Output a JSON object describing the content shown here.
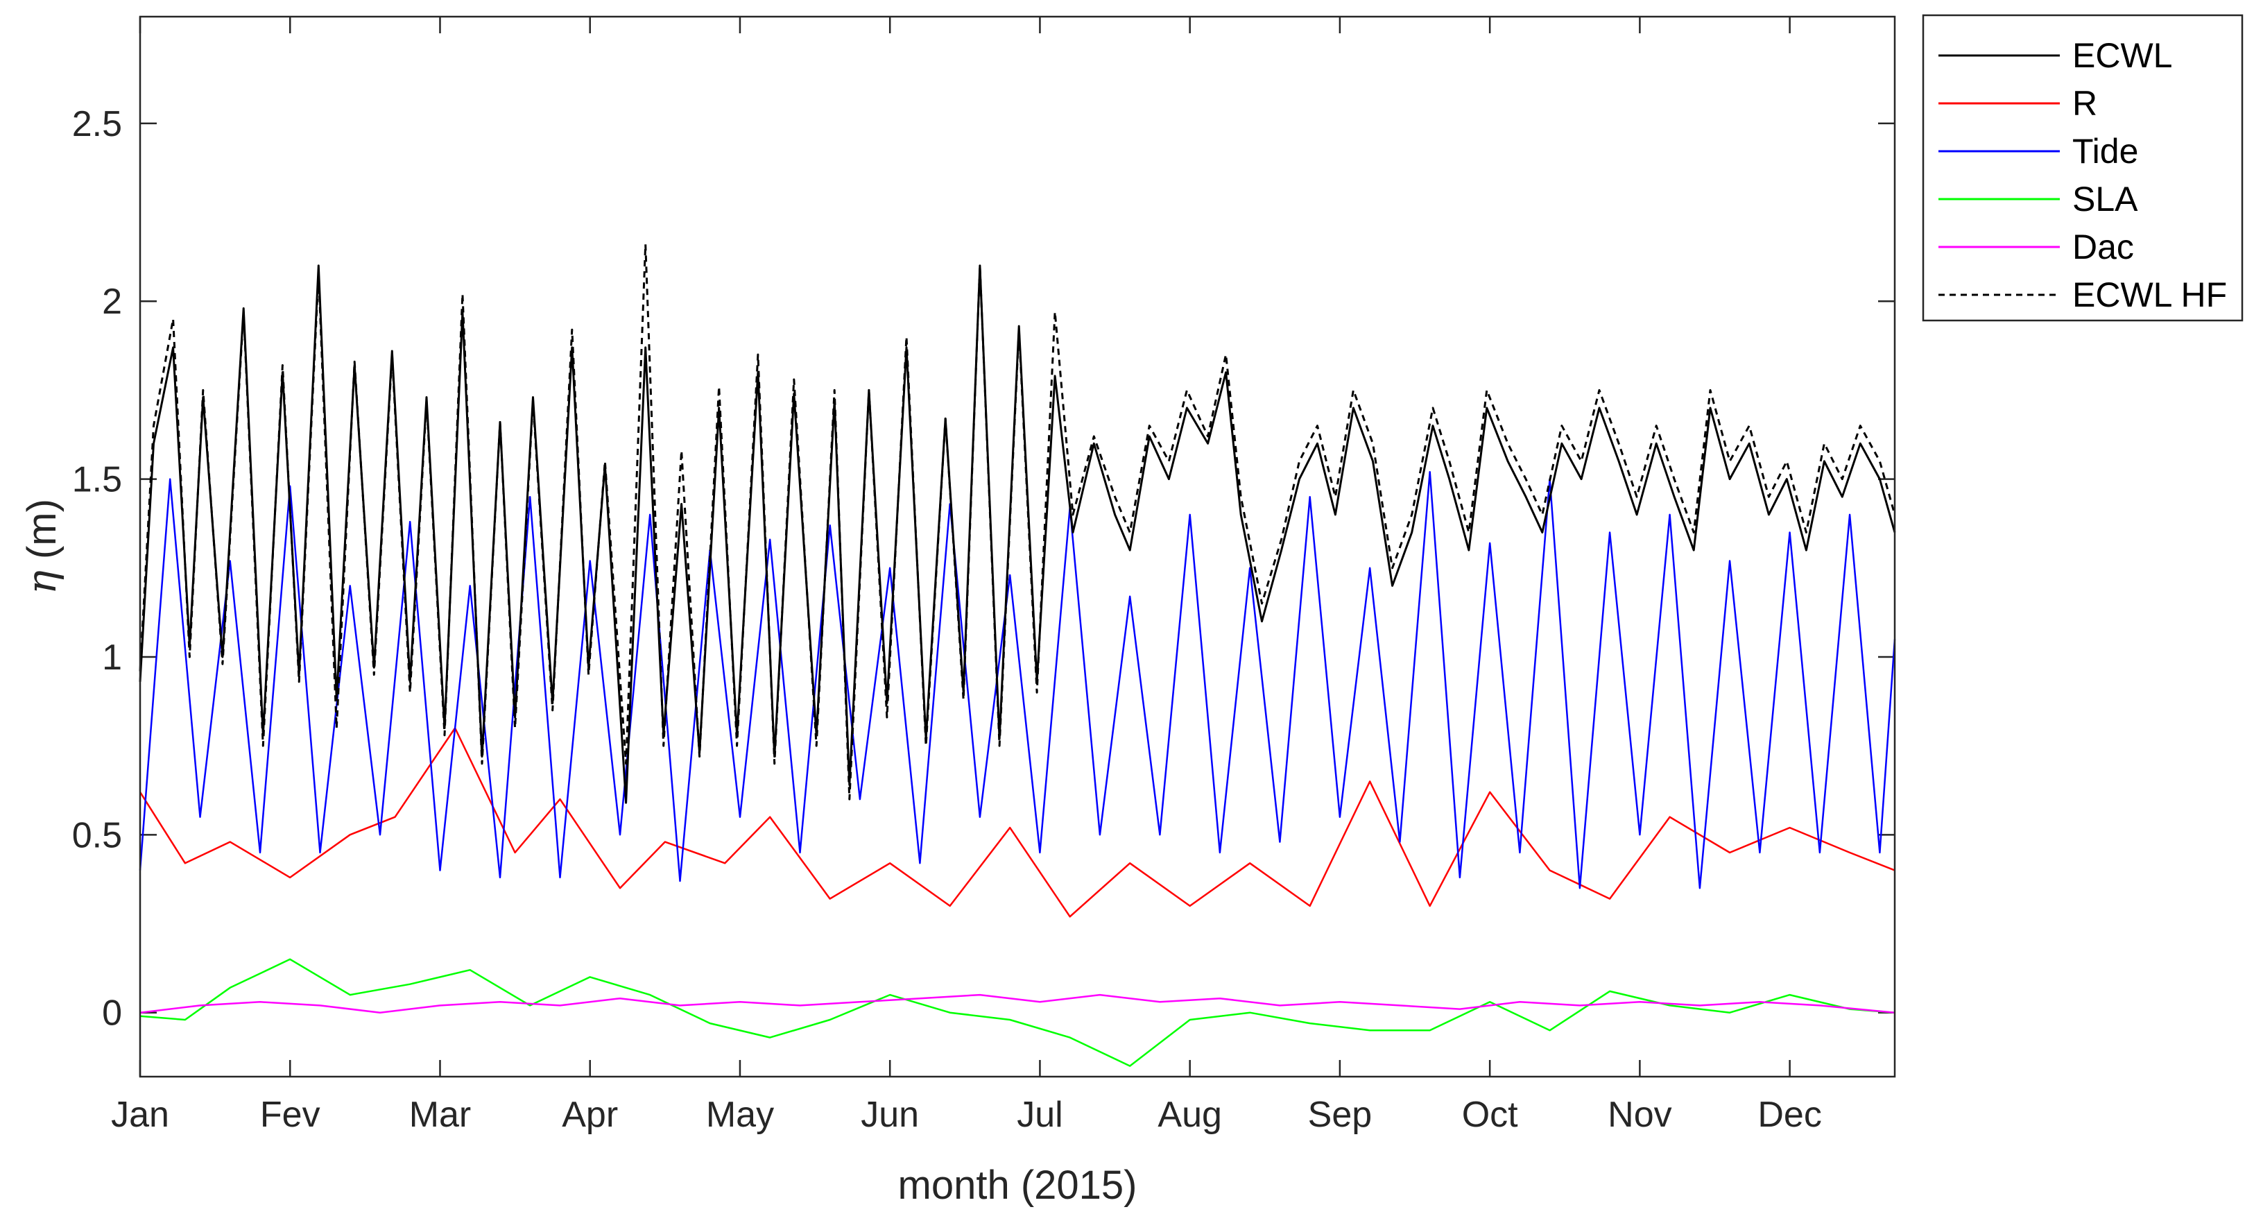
{
  "chart_data": {
    "type": "line",
    "title": "",
    "xlabel": "month (2015)",
    "ylabel_symbol": "η",
    "ylabel_unit": "(m)",
    "xlim": [
      0,
      11.7
    ],
    "ylim": [
      -0.18,
      2.8
    ],
    "x_ticks": [
      {
        "value": 0,
        "label": "Jan"
      },
      {
        "value": 1,
        "label": "Fev"
      },
      {
        "value": 2,
        "label": "Mar"
      },
      {
        "value": 3,
        "label": "Apr"
      },
      {
        "value": 4,
        "label": "May"
      },
      {
        "value": 5,
        "label": "Jun"
      },
      {
        "value": 6,
        "label": "Jul"
      },
      {
        "value": 7,
        "label": "Aug"
      },
      {
        "value": 8,
        "label": "Sep"
      },
      {
        "value": 9,
        "label": "Oct"
      },
      {
        "value": 10,
        "label": "Nov"
      },
      {
        "value": 11,
        "label": "Dec"
      }
    ],
    "y_ticks": [
      {
        "value": 0,
        "label": "0"
      },
      {
        "value": 0.5,
        "label": "0.5"
      },
      {
        "value": 1,
        "label": "1"
      },
      {
        "value": 1.5,
        "label": "1.5"
      },
      {
        "value": 2,
        "label": "2"
      },
      {
        "value": 2.5,
        "label": "2.5"
      }
    ],
    "legend_position": "outside-top-right",
    "series": [
      {
        "name": "ECWL",
        "color": "#000000",
        "dash": "solid",
        "x": [
          0.0,
          0.09,
          0.22,
          0.33,
          0.42,
          0.55,
          0.69,
          0.82,
          0.95,
          1.06,
          1.19,
          1.31,
          1.43,
          1.56,
          1.68,
          1.8,
          1.91,
          2.03,
          2.15,
          2.28,
          2.4,
          2.5,
          2.62,
          2.75,
          2.88,
          2.99,
          3.1,
          3.24,
          3.37,
          3.49,
          3.61,
          3.73,
          3.86,
          3.98,
          4.12,
          4.23,
          4.36,
          4.51,
          4.63,
          4.73,
          4.86,
          4.98,
          5.11,
          5.24,
          5.37,
          5.49,
          5.6,
          5.73,
          5.86,
          5.98,
          6.1,
          6.22,
          6.36,
          6.5,
          6.6,
          6.73,
          6.86,
          6.98,
          7.12,
          7.24,
          7.34,
          7.48,
          7.61,
          7.73,
          7.85,
          7.97,
          8.09,
          8.22,
          8.35,
          8.48,
          8.62,
          8.73,
          8.86,
          8.98,
          9.12,
          9.24,
          9.35,
          9.48,
          9.61,
          9.73,
          9.86,
          9.98,
          10.11,
          10.23,
          10.36,
          10.47,
          10.6,
          10.73,
          10.86,
          10.98,
          11.11,
          11.23,
          11.35,
          11.47,
          11.6,
          11.7
        ],
        "values": [
          0.93,
          1.6,
          1.87,
          1.03,
          1.73,
          1.0,
          1.98,
          0.78,
          1.8,
          0.95,
          2.1,
          0.88,
          1.82,
          0.97,
          1.86,
          0.93,
          1.73,
          0.8,
          1.97,
          0.72,
          1.66,
          0.83,
          1.73,
          0.87,
          1.87,
          0.97,
          1.54,
          0.59,
          1.87,
          0.78,
          1.43,
          0.73,
          1.7,
          0.78,
          1.8,
          0.72,
          1.74,
          0.78,
          1.72,
          0.64,
          1.75,
          0.87,
          1.87,
          0.77,
          1.67,
          0.9,
          2.1,
          0.77,
          1.93,
          0.93,
          1.79,
          1.35,
          1.6,
          1.4,
          1.3,
          1.62,
          1.5,
          1.7,
          1.6,
          1.8,
          1.4,
          1.1,
          1.3,
          1.5,
          1.6,
          1.4,
          1.7,
          1.55,
          1.2,
          1.35,
          1.65,
          1.5,
          1.3,
          1.7,
          1.55,
          1.45,
          1.35,
          1.6,
          1.5,
          1.7,
          1.55,
          1.4,
          1.6,
          1.45,
          1.3,
          1.7,
          1.5,
          1.6,
          1.4,
          1.5,
          1.3,
          1.55,
          1.45,
          1.6,
          1.5,
          1.35
        ]
      },
      {
        "name": "R",
        "color": "#ff0000",
        "dash": "solid",
        "x": [
          0.0,
          0.3,
          0.6,
          1.0,
          1.4,
          1.7,
          2.1,
          2.5,
          2.8,
          3.2,
          3.5,
          3.9,
          4.2,
          4.6,
          5.0,
          5.4,
          5.8,
          6.2,
          6.6,
          7.0,
          7.4,
          7.8,
          8.2,
          8.6,
          9.0,
          9.4,
          9.8,
          10.2,
          10.6,
          11.0,
          11.4,
          11.7
        ],
        "values": [
          0.62,
          0.42,
          0.48,
          0.38,
          0.5,
          0.55,
          0.8,
          0.45,
          0.6,
          0.35,
          0.48,
          0.42,
          0.55,
          0.32,
          0.42,
          0.3,
          0.52,
          0.27,
          0.42,
          0.3,
          0.42,
          0.3,
          0.65,
          0.3,
          0.62,
          0.4,
          0.32,
          0.55,
          0.45,
          0.52,
          0.45,
          0.4
        ]
      },
      {
        "name": "Tide",
        "color": "#0000ff",
        "dash": "solid",
        "x": [
          0.0,
          0.2,
          0.4,
          0.6,
          0.8,
          1.0,
          1.2,
          1.4,
          1.6,
          1.8,
          2.0,
          2.2,
          2.4,
          2.6,
          2.8,
          3.0,
          3.2,
          3.4,
          3.6,
          3.8,
          4.0,
          4.2,
          4.4,
          4.6,
          4.8,
          5.0,
          5.2,
          5.4,
          5.6,
          5.8,
          6.0,
          6.2,
          6.4,
          6.6,
          6.8,
          7.0,
          7.2,
          7.4,
          7.6,
          7.8,
          8.0,
          8.2,
          8.4,
          8.6,
          8.8,
          9.0,
          9.2,
          9.4,
          9.6,
          9.8,
          10.0,
          10.2,
          10.4,
          10.6,
          10.8,
          11.0,
          11.2,
          11.4,
          11.6,
          11.7
        ],
        "values": [
          0.4,
          1.5,
          0.55,
          1.27,
          0.45,
          1.48,
          0.45,
          1.2,
          0.5,
          1.38,
          0.4,
          1.2,
          0.38,
          1.45,
          0.38,
          1.27,
          0.5,
          1.4,
          0.37,
          1.3,
          0.55,
          1.33,
          0.45,
          1.37,
          0.6,
          1.25,
          0.42,
          1.43,
          0.55,
          1.23,
          0.45,
          1.42,
          0.5,
          1.17,
          0.5,
          1.4,
          0.45,
          1.25,
          0.48,
          1.45,
          0.55,
          1.25,
          0.48,
          1.52,
          0.38,
          1.32,
          0.45,
          1.5,
          0.35,
          1.35,
          0.5,
          1.4,
          0.35,
          1.27,
          0.45,
          1.35,
          0.45,
          1.4,
          0.45,
          1.05
        ]
      },
      {
        "name": "SLA",
        "color": "#00ff00",
        "dash": "solid",
        "x": [
          0.0,
          0.3,
          0.6,
          1.0,
          1.4,
          1.8,
          2.2,
          2.6,
          3.0,
          3.4,
          3.8,
          4.2,
          4.6,
          5.0,
          5.4,
          5.8,
          6.2,
          6.6,
          7.0,
          7.4,
          7.8,
          8.2,
          8.6,
          9.0,
          9.4,
          9.8,
          10.2,
          10.6,
          11.0,
          11.4,
          11.7
        ],
        "values": [
          -0.01,
          -0.02,
          0.07,
          0.15,
          0.05,
          0.08,
          0.12,
          0.02,
          0.1,
          0.05,
          -0.03,
          -0.07,
          -0.02,
          0.05,
          0.0,
          -0.02,
          -0.07,
          -0.15,
          -0.02,
          0.0,
          -0.03,
          -0.05,
          -0.05,
          0.03,
          -0.05,
          0.06,
          0.02,
          0.0,
          0.05,
          0.01,
          0.0
        ]
      },
      {
        "name": "Dac",
        "color": "#ff00ff",
        "dash": "solid",
        "x": [
          0.0,
          0.4,
          0.8,
          1.2,
          1.6,
          2.0,
          2.4,
          2.8,
          3.2,
          3.6,
          4.0,
          4.4,
          4.8,
          5.2,
          5.6,
          6.0,
          6.4,
          6.8,
          7.2,
          7.6,
          8.0,
          8.4,
          8.8,
          9.2,
          9.6,
          10.0,
          10.4,
          10.8,
          11.2,
          11.7
        ],
        "values": [
          0.0,
          0.02,
          0.03,
          0.02,
          0.0,
          0.02,
          0.03,
          0.02,
          0.04,
          0.02,
          0.03,
          0.02,
          0.03,
          0.04,
          0.05,
          0.03,
          0.05,
          0.03,
          0.04,
          0.02,
          0.03,
          0.02,
          0.01,
          0.03,
          0.02,
          0.03,
          0.02,
          0.03,
          0.02,
          0.0
        ]
      },
      {
        "name": "ECWL HF",
        "color": "#000000",
        "dash": "dashed",
        "x": [
          0.0,
          0.09,
          0.22,
          0.33,
          0.42,
          0.55,
          0.69,
          0.82,
          0.95,
          1.06,
          1.19,
          1.31,
          1.43,
          1.56,
          1.68,
          1.8,
          1.91,
          2.03,
          2.15,
          2.28,
          2.4,
          2.5,
          2.62,
          2.75,
          2.88,
          2.99,
          3.1,
          3.24,
          3.37,
          3.49,
          3.61,
          3.73,
          3.86,
          3.98,
          4.12,
          4.23,
          4.36,
          4.51,
          4.63,
          4.73,
          4.86,
          4.98,
          5.11,
          5.24,
          5.37,
          5.49,
          5.6,
          5.73,
          5.86,
          5.98,
          6.1,
          6.22,
          6.36,
          6.5,
          6.6,
          6.73,
          6.86,
          6.98,
          7.12,
          7.24,
          7.34,
          7.48,
          7.61,
          7.73,
          7.85,
          7.97,
          8.09,
          8.22,
          8.35,
          8.48,
          8.62,
          8.73,
          8.86,
          8.98,
          9.12,
          9.24,
          9.35,
          9.48,
          9.61,
          9.73,
          9.86,
          9.98,
          10.11,
          10.23,
          10.36,
          10.47,
          10.6,
          10.73,
          10.86,
          10.98,
          11.11,
          11.23,
          11.35,
          11.47,
          11.6,
          11.7
        ],
        "values": [
          0.96,
          1.65,
          1.95,
          1.0,
          1.75,
          0.98,
          1.97,
          0.75,
          1.82,
          0.93,
          2.08,
          0.8,
          1.83,
          0.95,
          1.85,
          0.9,
          1.72,
          0.78,
          2.02,
          0.7,
          1.66,
          0.8,
          1.72,
          0.85,
          1.92,
          0.95,
          1.55,
          0.7,
          2.16,
          0.75,
          1.58,
          0.72,
          1.76,
          0.75,
          1.85,
          0.7,
          1.78,
          0.75,
          1.75,
          0.6,
          1.75,
          0.83,
          1.9,
          0.75,
          1.67,
          0.88,
          2.1,
          0.75,
          1.92,
          0.9,
          1.97,
          1.4,
          1.62,
          1.45,
          1.35,
          1.65,
          1.55,
          1.75,
          1.62,
          1.85,
          1.45,
          1.15,
          1.33,
          1.55,
          1.65,
          1.45,
          1.75,
          1.6,
          1.25,
          1.4,
          1.7,
          1.55,
          1.35,
          1.75,
          1.6,
          1.5,
          1.4,
          1.65,
          1.55,
          1.75,
          1.6,
          1.45,
          1.65,
          1.5,
          1.35,
          1.75,
          1.55,
          1.65,
          1.45,
          1.55,
          1.35,
          1.6,
          1.5,
          1.65,
          1.55,
          1.4
        ]
      }
    ]
  }
}
